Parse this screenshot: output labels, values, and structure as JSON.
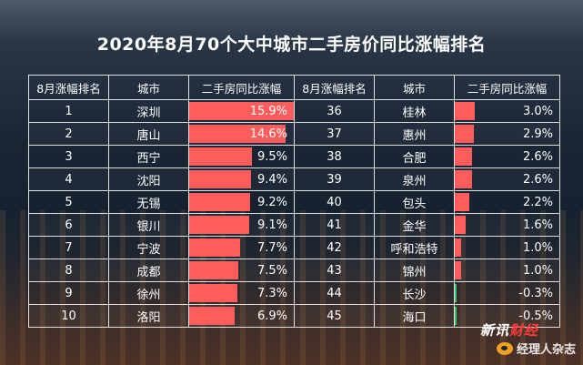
{
  "title": "2020年8月70个大中城市二手房价同比涨幅排名",
  "headers": [
    "8月涨幅排名",
    "城市",
    "二手房同比涨幅",
    "8月涨幅排名",
    "城市",
    "二手房同比涨幅"
  ],
  "left_rows": [
    {
      "rank": "1",
      "city": "深圳",
      "pct": "15.9%"
    },
    {
      "rank": "2",
      "city": "唐山",
      "pct": "14.6%"
    },
    {
      "rank": "3",
      "city": "西宁",
      "pct": "9.5%"
    },
    {
      "rank": "4",
      "city": "沈阳",
      "pct": "9.4%"
    },
    {
      "rank": "5",
      "city": "无锡",
      "pct": "9.2%"
    },
    {
      "rank": "6",
      "city": "银川",
      "pct": "9.1%"
    },
    {
      "rank": "7",
      "city": "宁波",
      "pct": "7.7%"
    },
    {
      "rank": "8",
      "city": "成都",
      "pct": "7.5%"
    },
    {
      "rank": "9",
      "city": "徐州",
      "pct": "7.3%"
    },
    {
      "rank": "10",
      "city": "洛阳",
      "pct": "6.9%"
    }
  ],
  "right_rows": [
    {
      "rank": "36",
      "city": "桂林",
      "pct": "3.0%"
    },
    {
      "rank": "37",
      "city": "惠州",
      "pct": "2.9%"
    },
    {
      "rank": "38",
      "city": "合肥",
      "pct": "2.6%"
    },
    {
      "rank": "39",
      "city": "泉州",
      "pct": "2.6%"
    },
    {
      "rank": "40",
      "city": "包头",
      "pct": "2.2%"
    },
    {
      "rank": "41",
      "city": "金华",
      "pct": "1.6%"
    },
    {
      "rank": "42",
      "city": "呼和浩特",
      "pct": "1.0%"
    },
    {
      "rank": "43",
      "city": "锦州",
      "pct": "1.0%"
    },
    {
      "rank": "44",
      "city": "长沙",
      "pct": "-0.3%"
    },
    {
      "rank": "45",
      "city": "海口",
      "pct": "-0.5%"
    }
  ],
  "chart_data": {
    "type": "table",
    "title": "2020年8月70个大中城市二手房价同比涨幅排名",
    "columns": [
      "8月涨幅排名",
      "城市",
      "二手房同比涨幅"
    ],
    "unit": "%",
    "rows": [
      {
        "rank": 1,
        "city": "深圳",
        "value": 15.9
      },
      {
        "rank": 2,
        "city": "唐山",
        "value": 14.6
      },
      {
        "rank": 3,
        "city": "西宁",
        "value": 9.5
      },
      {
        "rank": 4,
        "city": "沈阳",
        "value": 9.4
      },
      {
        "rank": 5,
        "city": "无锡",
        "value": 9.2
      },
      {
        "rank": 6,
        "city": "银川",
        "value": 9.1
      },
      {
        "rank": 7,
        "city": "宁波",
        "value": 7.7
      },
      {
        "rank": 8,
        "city": "成都",
        "value": 7.5
      },
      {
        "rank": 9,
        "city": "徐州",
        "value": 7.3
      },
      {
        "rank": 10,
        "city": "洛阳",
        "value": 6.9
      },
      {
        "rank": 36,
        "city": "桂林",
        "value": 3.0
      },
      {
        "rank": 37,
        "city": "惠州",
        "value": 2.9
      },
      {
        "rank": 38,
        "city": "合肥",
        "value": 2.6
      },
      {
        "rank": 39,
        "city": "泉州",
        "value": 2.6
      },
      {
        "rank": 40,
        "city": "包头",
        "value": 2.2
      },
      {
        "rank": 41,
        "city": "金华",
        "value": 1.6
      },
      {
        "rank": 42,
        "city": "呼和浩特",
        "value": 1.0
      },
      {
        "rank": 43,
        "city": "锦州",
        "value": 1.0
      },
      {
        "rank": 44,
        "city": "长沙",
        "value": -0.3
      },
      {
        "rank": 45,
        "city": "海口",
        "value": -0.5
      }
    ],
    "bar_scale_max": 15.9,
    "colors": {
      "positive": "#ff5c5c",
      "negative": "#38c46a"
    }
  },
  "logo": {
    "prefix": "新讯",
    "suffix": "财经"
  },
  "watermark": "经理人杂志"
}
